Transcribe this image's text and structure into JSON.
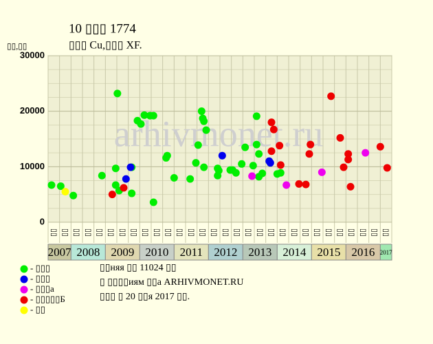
{
  "chart_data": {
    "type": "scatter",
    "title": "10 ▯▯▯ 1774",
    "subtitle": "▯▯▯ Cu,▯▯▯ XF.",
    "y_label": "▯▯,▯▯",
    "watermark": "arhivmonet.ru",
    "categories": [
      "▯▯",
      "▯▯",
      "▯▯",
      "▯▯",
      "▯▯",
      "▯▯",
      "▯▯",
      "▯▯",
      "▯▯",
      "▯▯",
      "▯▯",
      "▯▯",
      "▯▯",
      "▯▯",
      "▯▯",
      "▯▯",
      "▯▯",
      "▯▯",
      "▯▯",
      "▯▯",
      "▯▯",
      "▯▯",
      "▯▯",
      "▯▯",
      "▯▯",
      "▯▯",
      "▯▯",
      "▯▯",
      "▯▯",
      "▯▯"
    ],
    "x_groups": [
      {
        "label": "2007",
        "columns": 2,
        "color": "#c8c8a0"
      },
      {
        "label": "2008",
        "columns": 3,
        "color": "#b8e8d8"
      },
      {
        "label": "2009",
        "columns": 3,
        "color": "#e0d8b0"
      },
      {
        "label": "2010",
        "columns": 3,
        "color": "#c8d0c8"
      },
      {
        "label": "2011",
        "columns": 3,
        "color": "#e4e4bc"
      },
      {
        "label": "2012",
        "columns": 3,
        "color": "#b0d0d0"
      },
      {
        "label": "2013",
        "columns": 3,
        "color": "#b8c8b8"
      },
      {
        "label": "2014",
        "columns": 3,
        "color": "#d8f0d8"
      },
      {
        "label": "2015",
        "columns": 3,
        "color": "#e8e0a8"
      },
      {
        "label": "2016",
        "columns": 3,
        "color": "#d8c8a8"
      },
      {
        "label": "2017",
        "columns": 1,
        "color": "#a0e8b0"
      }
    ],
    "xlim": [
      0,
      30
    ],
    "ylim": [
      0,
      30000
    ],
    "yticks": [
      0,
      10000,
      20000,
      30000
    ],
    "grid": true,
    "series": [
      {
        "name": "- ▯▯▯",
        "color": "#00ee00",
        "x": [
          0.3,
          1.1,
          2.2,
          4.7,
          6.05,
          5.9,
          5.9,
          6.2,
          7.3,
          7.3,
          7.8,
          8.1,
          8.4,
          8.9,
          9.2,
          9.2,
          10.3,
          10.4,
          11.0,
          12.4,
          12.9,
          13.1,
          13.4,
          13.5,
          13.6,
          13.8,
          13.6,
          14.8,
          14.9,
          14.8,
          15.9,
          16.1,
          16.4,
          16.9,
          17.2,
          17.9,
          18.2,
          18.2,
          18.4,
          18.4,
          18.7,
          20.0,
          20.3
        ],
        "values": [
          6700,
          6500,
          4800,
          8400,
          23200,
          9700,
          6700,
          5700,
          9900,
          5200,
          18300,
          17700,
          19300,
          19200,
          19200,
          3600,
          11600,
          12000,
          8000,
          7800,
          10700,
          13900,
          20000,
          18700,
          18200,
          16600,
          9900,
          9700,
          9300,
          8400,
          9400,
          9400,
          8900,
          10500,
          13500,
          10200,
          19100,
          14000,
          12300,
          8200,
          8800,
          8700,
          8900
        ]
      },
      {
        "name": "- ▯▯▯",
        "color": "#0000ee",
        "x": [
          7.2,
          6.8,
          15.2,
          19.3,
          19.4
        ],
        "values": [
          9900,
          7800,
          12000,
          11000,
          10700
        ]
      },
      {
        "name": "- ▯▯▯a",
        "color": "#ee00ee",
        "x": [
          17.8,
          20.8,
          23.9,
          27.7
        ],
        "values": [
          8300,
          6700,
          9000,
          12500
        ]
      },
      {
        "name": "- ▯▯▯▯▯Б",
        "color": "#ee0000",
        "x": [
          5.6,
          6.6,
          19.5,
          19.5,
          19.7,
          20.2,
          20.3,
          21.9,
          22.5,
          22.8,
          22.9,
          24.7,
          25.5,
          25.8,
          26.2,
          26.2,
          26.4,
          29.0,
          29.6
        ],
        "values": [
          5000,
          6200,
          12800,
          18000,
          16700,
          13800,
          10300,
          6900,
          6800,
          12300,
          14000,
          22700,
          15200,
          9900,
          12300,
          11300,
          6400,
          13600,
          9800
        ]
      },
      {
        "name": "- ▯▯",
        "color": "#ffff00",
        "x": [
          1.5
        ],
        "values": [
          5500
        ]
      }
    ],
    "notes": [
      "▯▯няя ▯▯ 11024 ▯▯",
      "▯ ▯▯▯▯иям ▯▯а ARHIVMONET.RU",
      "▯▯▯ ▯ 20 ▯▯я 2017 ▯▯."
    ]
  }
}
